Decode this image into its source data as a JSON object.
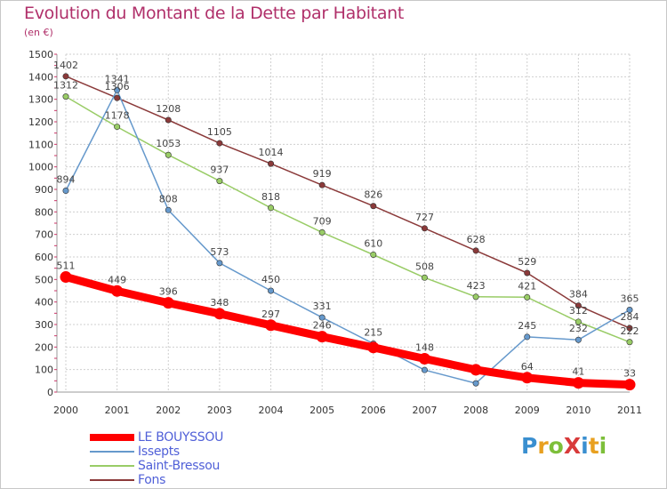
{
  "title": "Evolution du Montant de la Dette par Habitant",
  "subtitle": "(en €)",
  "brand": "ProXiti",
  "chart_data": {
    "type": "line",
    "title": "Evolution du Montant de la Dette par Habitant",
    "subtitle": "(en €)",
    "xlabel": "",
    "ylabel": "",
    "x": [
      "2000",
      "2001",
      "2002",
      "2003",
      "2004",
      "2005",
      "2006",
      "2007",
      "2008",
      "2009",
      "2010",
      "2011"
    ],
    "ylim": [
      0,
      1500
    ],
    "yticks": [
      0,
      100,
      200,
      300,
      400,
      500,
      600,
      700,
      800,
      900,
      1000,
      1100,
      1200,
      1300,
      1400,
      1500
    ],
    "grid": true,
    "legend_position": "bottom-left",
    "series": [
      {
        "name": "LE BOUYSSOU",
        "color": "#ff0000",
        "values": [
          511,
          449,
          396,
          348,
          297,
          246,
          198,
          148,
          99,
          64,
          41,
          33
        ],
        "labels": [
          "511",
          "449",
          "396",
          "348",
          "297",
          "246",
          "",
          "148",
          "",
          "64",
          "41",
          "33"
        ]
      },
      {
        "name": "Issepts",
        "color": "#6699cc",
        "values": [
          894,
          1341,
          808,
          573,
          450,
          331,
          215,
          98,
          39,
          245,
          232,
          365
        ],
        "labels": [
          "894",
          "1341",
          "808",
          "573",
          "450",
          "331",
          "215",
          "",
          "",
          "245",
          "232",
          "365"
        ]
      },
      {
        "name": "Saint-Bressou",
        "color": "#99cc66",
        "values": [
          1312,
          1178,
          1053,
          937,
          818,
          709,
          610,
          508,
          423,
          421,
          312,
          222
        ],
        "labels": [
          "1312",
          "1178",
          "1053",
          "937",
          "818",
          "709",
          "610",
          "508",
          "423",
          "421",
          "312",
          "222"
        ]
      },
      {
        "name": "Fons",
        "color": "#8b3a3a",
        "values": [
          1402,
          1306,
          1208,
          1105,
          1014,
          919,
          826,
          727,
          628,
          529,
          384,
          284
        ],
        "labels": [
          "1402",
          "1306",
          "1208",
          "1105",
          "1014",
          "919",
          "826",
          "727",
          "628",
          "529",
          "384",
          "284"
        ]
      }
    ]
  }
}
